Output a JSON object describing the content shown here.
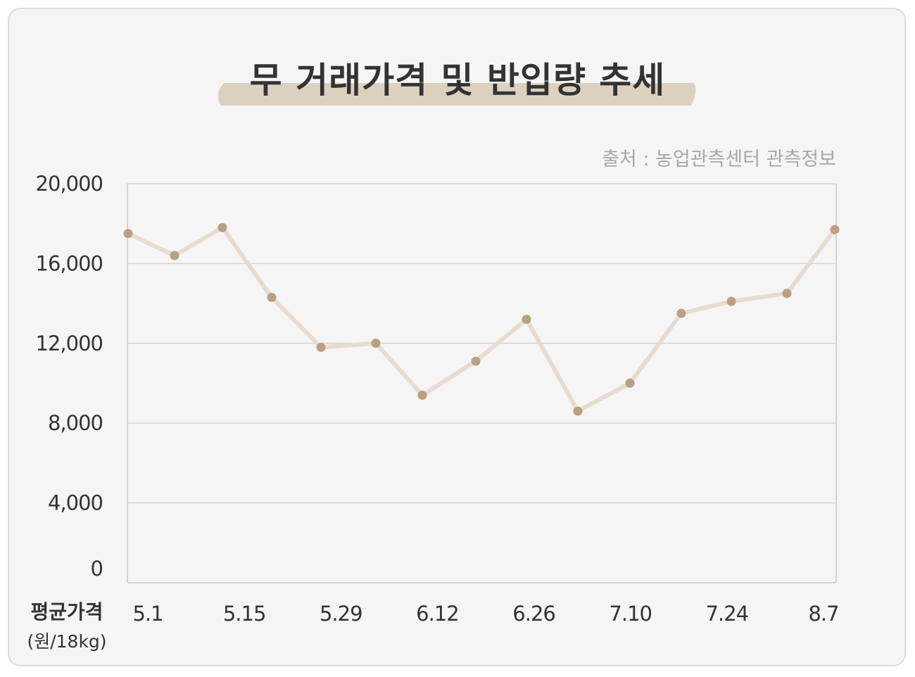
{
  "title": "무 거래가격 및 반입량 추세",
  "source": "출처 : 농업관측센터 관측정보",
  "colors": {
    "background": "#f5f5f5",
    "line": "#e6dccf",
    "marker": "#b9a080",
    "title_stroke": "#dcd0bf",
    "grid": "#d4d4d4"
  },
  "chart_data": {
    "type": "line",
    "title": "무 거래가격 및 반입량 추세",
    "ylabel": "평균가격",
    "yunit": "(원/18kg)",
    "ylim": [
      0,
      20000
    ],
    "yticks": [
      0,
      4000,
      8000,
      12000,
      16000,
      20000
    ],
    "ytick_labels": [
      "0",
      "4,000",
      "8,000",
      "12,000",
      "16,000",
      "20,000"
    ],
    "xtick_labels": [
      "5.1",
      "5.15",
      "5.29",
      "6.12",
      "6.26",
      "7.10",
      "7.24",
      "8.7"
    ],
    "grid": true,
    "series": [
      {
        "values": [
          17500,
          16400,
          17800,
          14300,
          11800,
          12000,
          9400,
          11100,
          13200,
          8600,
          10000,
          13500,
          14100,
          14500,
          17700
        ]
      }
    ]
  }
}
